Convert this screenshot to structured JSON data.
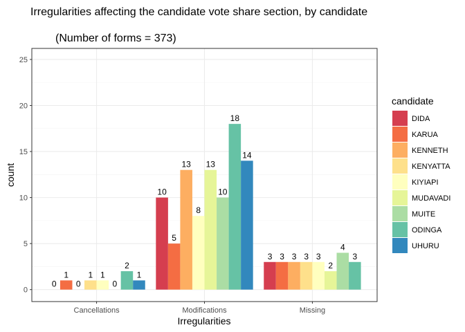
{
  "chart_data": {
    "type": "bar",
    "title": "Irregularities affecting the candidate vote share section, by candidate",
    "subtitle": "(Number of forms = 373)",
    "xlabel": "Irregularities",
    "ylabel": "count",
    "ylim": [
      -1.3,
      26.2
    ],
    "yticks": [
      0,
      5,
      10,
      15,
      20,
      25
    ],
    "grid": true,
    "legend_title": "candidate",
    "legend_position": "right",
    "categories": [
      "Cancellations",
      "Modifications",
      "Missing"
    ],
    "series": [
      {
        "name": "DIDA",
        "color": "#D53E4F",
        "values": [
          0,
          10,
          3
        ]
      },
      {
        "name": "KARUA",
        "color": "#F46D43",
        "values": [
          1,
          5,
          3
        ]
      },
      {
        "name": "KENNETH",
        "color": "#FDAE61",
        "values": [
          0,
          13,
          3
        ]
      },
      {
        "name": "KENYATTA",
        "color": "#FEE08B",
        "values": [
          1,
          null,
          3
        ]
      },
      {
        "name": "KIYIAPI",
        "color": "#FFFFBF",
        "values": [
          1,
          8,
          3
        ]
      },
      {
        "name": "MUDAVADI",
        "color": "#E6F598",
        "values": [
          0,
          13,
          2
        ]
      },
      {
        "name": "MUITE",
        "color": "#ABDDA4",
        "values": [
          null,
          10,
          4
        ]
      },
      {
        "name": "ODINGA",
        "color": "#66C2A5",
        "values": [
          2,
          18,
          3
        ]
      },
      {
        "name": "UHURU",
        "color": "#3288BD",
        "values": [
          1,
          14,
          null
        ]
      }
    ]
  }
}
